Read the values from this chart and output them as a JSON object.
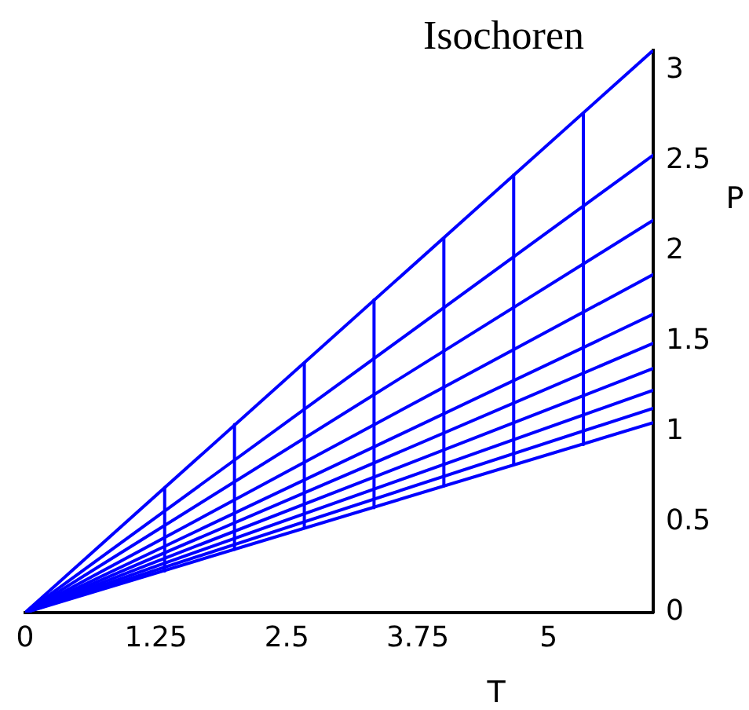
{
  "chart_data": {
    "type": "line",
    "title": "Isochoren",
    "xlabel": "T",
    "ylabel": "P",
    "xlim": [
      0,
      6
    ],
    "xticks": [
      0,
      1.25,
      2.5,
      3.75,
      5
    ],
    "ylim": [
      0,
      3.11
    ],
    "yticks": [
      0,
      0.5,
      1,
      1.5,
      2,
      2.5,
      3
    ],
    "grid": false,
    "legend": false,
    "marker": "none",
    "line_style": "solid",
    "series": [
      {
        "color": "#0000ff",
        "x": [
          0,
          6
        ],
        "values": [
          0,
          3.11
        ]
      },
      {
        "color": "#0000ff",
        "x": [
          0,
          6
        ],
        "values": [
          0,
          2.53
        ]
      },
      {
        "color": "#0000ff",
        "x": [
          0,
          6
        ],
        "values": [
          0,
          2.17
        ]
      },
      {
        "color": "#0000ff",
        "x": [
          0,
          6
        ],
        "values": [
          0,
          1.87
        ]
      },
      {
        "color": "#0000ff",
        "x": [
          0,
          6
        ],
        "values": [
          0,
          1.65
        ]
      },
      {
        "color": "#0000ff",
        "x": [
          0,
          6
        ],
        "values": [
          0,
          1.49
        ]
      },
      {
        "color": "#0000ff",
        "x": [
          0,
          6
        ],
        "values": [
          0,
          1.35
        ]
      },
      {
        "color": "#0000ff",
        "x": [
          0,
          6
        ],
        "values": [
          0,
          1.23
        ]
      },
      {
        "color": "#0000ff",
        "x": [
          0,
          6
        ],
        "values": [
          0,
          1.13
        ]
      },
      {
        "color": "#0000ff",
        "x": [
          0,
          6
        ],
        "values": [
          0,
          1.05
        ]
      },
      {
        "color": "#0000ff",
        "x": [
          1.333,
          1.333
        ],
        "values": [
          0.23,
          0.69
        ]
      },
      {
        "color": "#0000ff",
        "x": [
          2,
          2
        ],
        "values": [
          0.35,
          1.04
        ]
      },
      {
        "color": "#0000ff",
        "x": [
          2.667,
          2.667
        ],
        "values": [
          0.47,
          1.38
        ]
      },
      {
        "color": "#0000ff",
        "x": [
          3.333,
          3.333
        ],
        "values": [
          0.58,
          1.73
        ]
      },
      {
        "color": "#0000ff",
        "x": [
          4,
          4
        ],
        "values": [
          0.7,
          2.07
        ]
      },
      {
        "color": "#0000ff",
        "x": [
          4.667,
          4.667
        ],
        "values": [
          0.82,
          2.42
        ]
      },
      {
        "color": "#0000ff",
        "x": [
          5.333,
          5.333
        ],
        "values": [
          0.93,
          2.76
        ]
      }
    ]
  }
}
